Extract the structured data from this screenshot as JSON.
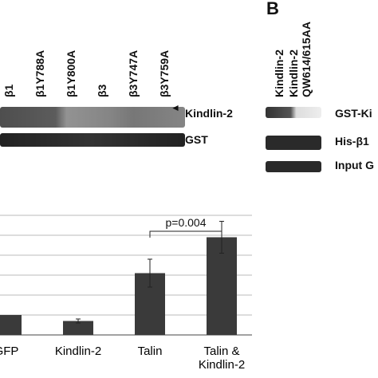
{
  "panel_a_blot": {
    "lanes": [
      "β1",
      "β1Y788A",
      "β1Y800A",
      "β3",
      "β3Y747A",
      "β3Y759A"
    ],
    "rows": [
      "Kindlin-2",
      "GST"
    ]
  },
  "panel_b": {
    "letter": "B",
    "lanes": [
      [
        "Kindlin-2"
      ],
      [
        "Kindlin-2",
        "QW614/615AA"
      ]
    ],
    "rows": [
      "GST-Ki",
      "His-β1",
      "Input G"
    ]
  },
  "chart_data": {
    "type": "bar",
    "categories": [
      "GFP",
      "Kindlin-2",
      "Talin",
      "Talin & Kindlin-2"
    ],
    "values": [
      1.0,
      0.7,
      3.1,
      4.9
    ],
    "errors": [
      null,
      0.1,
      0.7,
      0.8
    ],
    "color": "#3a3a3a",
    "ylim": [
      0,
      6
    ],
    "yticks": [
      0,
      1,
      2,
      3,
      4,
      5,
      6
    ],
    "grid": true,
    "annotation": {
      "text": "p=0.004",
      "from": 2,
      "to": 3
    }
  }
}
